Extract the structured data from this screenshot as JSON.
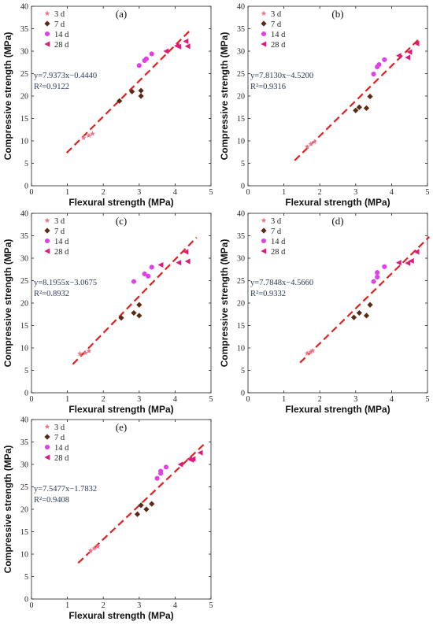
{
  "chart_data": [
    {
      "type": "scatter",
      "panel_label": "(a)",
      "xlabel": "Flexural strength (MPa)",
      "ylabel": "Compressive strength (MPa)",
      "xlim": [
        0,
        5
      ],
      "ylim": [
        0,
        40
      ],
      "xticks": [
        "0",
        "1",
        "2",
        "3",
        "4",
        "5"
      ],
      "yticks": [
        "0",
        "5",
        "10",
        "15",
        "20",
        "25",
        "30",
        "35",
        "40"
      ],
      "legend": [
        "3 d",
        "7 d",
        "14 d",
        "28 d"
      ],
      "equation": "y=7.9373x−0.4440",
      "r2": "R²=0.9122",
      "fit": {
        "slope": 7.9373,
        "intercept": -0.444,
        "x_range": [
          0.98,
          4.4
        ]
      },
      "series": [
        {
          "name": "3 d",
          "marker": "star",
          "color": "#e8788a",
          "points": [
            [
              1.45,
              10.7
            ],
            [
              1.6,
              11.2
            ],
            [
              1.7,
              11.6
            ]
          ]
        },
        {
          "name": "7 d",
          "marker": "diamond",
          "color": "#5a2a14",
          "points": [
            [
              2.45,
              18.9
            ],
            [
              2.8,
              21.0
            ],
            [
              3.05,
              20.0
            ],
            [
              3.05,
              21.2
            ]
          ]
        },
        {
          "name": "14 d",
          "marker": "circle",
          "color": "#e040e8",
          "points": [
            [
              3.0,
              26.8
            ],
            [
              3.15,
              27.9
            ],
            [
              3.2,
              28.3
            ],
            [
              3.35,
              29.4
            ]
          ]
        },
        {
          "name": "28 d",
          "marker": "triangle-left",
          "color": "#e0197b",
          "points": [
            [
              3.75,
              30.0
            ],
            [
              4.05,
              31.2
            ],
            [
              4.1,
              31.0
            ],
            [
              4.3,
              32.2
            ],
            [
              4.35,
              31.1
            ]
          ]
        }
      ]
    },
    {
      "type": "scatter",
      "panel_label": "(b)",
      "xlabel": "Flexural strength (MPa)",
      "ylabel": "Compressive strength (MPa)",
      "xlim": [
        0,
        5
      ],
      "ylim": [
        0,
        40
      ],
      "xticks": [
        "0",
        "1",
        "2",
        "3",
        "4",
        "5"
      ],
      "yticks": [
        "0",
        "5",
        "10",
        "15",
        "20",
        "25",
        "30",
        "35",
        "40"
      ],
      "legend": [
        "3 d",
        "7 d",
        "14 d",
        "28 d"
      ],
      "equation": "y=7.8130x−4.5200",
      "r2": "R²=0.9316",
      "fit": {
        "slope": 7.813,
        "intercept": -4.52,
        "x_range": [
          1.3,
          4.8
        ]
      },
      "series": [
        {
          "name": "3 d",
          "marker": "star",
          "color": "#e8788a",
          "points": [
            [
              1.65,
              8.7
            ],
            [
              1.75,
              9.3
            ],
            [
              1.85,
              9.8
            ]
          ]
        },
        {
          "name": "7 d",
          "marker": "diamond",
          "color": "#5a2a14",
          "points": [
            [
              3.0,
              16.8
            ],
            [
              3.1,
              17.5
            ],
            [
              3.3,
              17.3
            ],
            [
              3.4,
              19.9
            ]
          ]
        },
        {
          "name": "14 d",
          "marker": "circle",
          "color": "#e040e8",
          "points": [
            [
              3.5,
              24.9
            ],
            [
              3.6,
              26.5
            ],
            [
              3.65,
              27.0
            ],
            [
              3.8,
              28.1
            ]
          ]
        },
        {
          "name": "28 d",
          "marker": "triangle-left",
          "color": "#e0197b",
          "points": [
            [
              4.2,
              29.0
            ],
            [
              4.45,
              28.6
            ],
            [
              4.5,
              29.8
            ],
            [
              4.7,
              31.7
            ]
          ]
        }
      ]
    },
    {
      "type": "scatter",
      "panel_label": "(c)",
      "xlabel": "Flexural strength (MPa)",
      "ylabel": "Compressive strength (MPa)",
      "xlim": [
        0,
        5
      ],
      "ylim": [
        0,
        40
      ],
      "xticks": [
        "0",
        "1",
        "2",
        "3",
        "4",
        "5"
      ],
      "yticks": [
        "0",
        "5",
        "10",
        "15",
        "20",
        "25",
        "30",
        "35",
        "40"
      ],
      "legend": [
        "3 d",
        "7 d",
        "14 d",
        "28 d"
      ],
      "equation": "y=8.1955x−3.0675",
      "r2": "R²=0.8932",
      "fit": {
        "slope": 8.1955,
        "intercept": -3.0675,
        "x_range": [
          1.15,
          4.6
        ]
      },
      "series": [
        {
          "name": "3 d",
          "marker": "star",
          "color": "#e8788a",
          "points": [
            [
              1.35,
              8.7
            ],
            [
              1.5,
              8.9
            ],
            [
              1.6,
              9.3
            ]
          ]
        },
        {
          "name": "7 d",
          "marker": "diamond",
          "color": "#5a2a14",
          "points": [
            [
              2.5,
              16.7
            ],
            [
              2.85,
              17.8
            ],
            [
              3.0,
              17.2
            ],
            [
              3.0,
              19.6
            ]
          ]
        },
        {
          "name": "14 d",
          "marker": "circle",
          "color": "#e040e8",
          "points": [
            [
              2.85,
              24.8
            ],
            [
              3.15,
              26.5
            ],
            [
              3.25,
              26.0
            ],
            [
              3.35,
              28.0
            ]
          ]
        },
        {
          "name": "28 d",
          "marker": "triangle-left",
          "color": "#e0197b",
          "points": [
            [
              3.6,
              28.5
            ],
            [
              4.1,
              29.0
            ],
            [
              4.3,
              31.4
            ],
            [
              4.35,
              29.3
            ]
          ]
        }
      ]
    },
    {
      "type": "scatter",
      "panel_label": "(d)",
      "xlabel": "Flexural strength (MPa)",
      "ylabel": "Compressive strength (MPa)",
      "xlim": [
        0,
        5
      ],
      "ylim": [
        0,
        40
      ],
      "xticks": [
        "0",
        "1",
        "2",
        "3",
        "4",
        "5"
      ],
      "yticks": [
        "0",
        "5",
        "10",
        "15",
        "20",
        "25",
        "30",
        "35",
        "40"
      ],
      "legend": [
        "3 d",
        "7 d",
        "14 d",
        "28 d"
      ],
      "equation": "y=7.7848x−4.5660",
      "r2": "R²=0.9332",
      "fit": {
        "slope": 7.7848,
        "intercept": -4.566,
        "x_range": [
          1.45,
          5.05
        ]
      },
      "series": [
        {
          "name": "3 d",
          "marker": "star",
          "color": "#e8788a",
          "points": [
            [
              1.65,
              8.8
            ],
            [
              1.75,
              9.1
            ],
            [
              1.8,
              9.4
            ]
          ]
        },
        {
          "name": "7 d",
          "marker": "diamond",
          "color": "#5a2a14",
          "points": [
            [
              2.95,
              16.8
            ],
            [
              3.1,
              17.8
            ],
            [
              3.3,
              17.2
            ],
            [
              3.4,
              19.6
            ]
          ]
        },
        {
          "name": "14 d",
          "marker": "circle",
          "color": "#e040e8",
          "points": [
            [
              3.5,
              24.8
            ],
            [
              3.6,
              25.8
            ],
            [
              3.6,
              26.8
            ],
            [
              3.8,
              28.1
            ]
          ]
        },
        {
          "name": "28 d",
          "marker": "triangle-left",
          "color": "#e0197b",
          "points": [
            [
              4.2,
              29.0
            ],
            [
              4.45,
              28.9
            ],
            [
              4.55,
              29.4
            ],
            [
              4.7,
              31.4
            ]
          ]
        }
      ]
    },
    {
      "type": "scatter",
      "panel_label": "(e)",
      "xlabel": "Flexural strength (MPa)",
      "ylabel": "Compressive strength (MPa)",
      "xlim": [
        0,
        5
      ],
      "ylim": [
        0,
        40
      ],
      "xticks": [
        "0",
        "1",
        "2",
        "3",
        "4",
        "5"
      ],
      "yticks": [
        "0",
        "5",
        "10",
        "15",
        "20",
        "25",
        "30",
        "35",
        "40"
      ],
      "legend": [
        "3 d",
        "7 d",
        "14 d",
        "28 d"
      ],
      "equation": "y=7.5477x−1.7832",
      "r2": "R²=0.9408",
      "fit": {
        "slope": 7.5477,
        "intercept": -1.7832,
        "x_range": [
          1.3,
          4.85
        ]
      },
      "series": [
        {
          "name": "3 d",
          "marker": "star",
          "color": "#e8788a",
          "points": [
            [
              1.65,
              10.8
            ],
            [
              1.75,
              11.3
            ],
            [
              1.85,
              11.7
            ]
          ]
        },
        {
          "name": "7 d",
          "marker": "diamond",
          "color": "#5a2a14",
          "points": [
            [
              2.95,
              18.9
            ],
            [
              3.05,
              20.9
            ],
            [
              3.2,
              20.0
            ],
            [
              3.35,
              21.2
            ]
          ]
        },
        {
          "name": "14 d",
          "marker": "circle",
          "color": "#e040e8",
          "points": [
            [
              3.5,
              26.9
            ],
            [
              3.6,
              28.0
            ],
            [
              3.6,
              28.5
            ],
            [
              3.75,
              29.4
            ]
          ]
        },
        {
          "name": "28 d",
          "marker": "triangle-left",
          "color": "#e0197b",
          "points": [
            [
              4.15,
              30.0
            ],
            [
              4.4,
              31.2
            ],
            [
              4.45,
              31.0
            ],
            [
              4.5,
              31.2
            ],
            [
              4.7,
              32.6
            ]
          ]
        }
      ]
    }
  ]
}
